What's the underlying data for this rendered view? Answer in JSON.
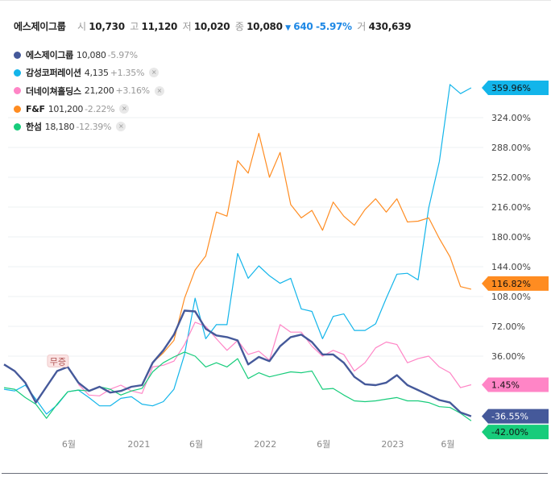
{
  "header": {
    "name": "에스제이그룹",
    "open_label": "시",
    "open": "10,730",
    "high_label": "고",
    "high": "11,120",
    "low_label": "저",
    "low": "10,020",
    "close_label": "종",
    "close": "10,080",
    "change_arrow": "▼",
    "change": "640",
    "change_pct": "-5.97%",
    "volume_label": "거",
    "volume": "430,639"
  },
  "legend": [
    {
      "name": "에스제이그룹",
      "price": "10,080",
      "change": "-5.97%",
      "color": "#45599a",
      "removable": false
    },
    {
      "name": "감성코퍼레이션",
      "price": "4,135",
      "change": "+1.35%",
      "color": "#13b5ea",
      "removable": true
    },
    {
      "name": "더네이쳐홀딩스",
      "price": "21,200",
      "change": "+3.16%",
      "color": "#ff85c6",
      "removable": true
    },
    {
      "name": "F&F",
      "price": "101,200",
      "change": "-2.22%",
      "color": "#ff8c21",
      "removable": true
    },
    {
      "name": "한섬",
      "price": "18,180",
      "change": "-12.39%",
      "color": "#17cc7b",
      "removable": true
    }
  ],
  "remove_icon": "×",
  "marker": {
    "label": "무증",
    "index": 5
  },
  "chart_data": {
    "type": "line",
    "ylim": [
      -60,
      380
    ],
    "yticks": [
      36,
      72,
      108,
      144,
      180,
      216,
      252,
      288,
      324
    ],
    "ytick_labels": [
      "36.00%",
      "72.00%",
      "108.00%",
      "144.00%",
      "180.00%",
      "216.00%",
      "252.00%",
      "288.00%",
      "324.00%"
    ],
    "xticks": [
      {
        "label": "6월",
        "index": 6.1
      },
      {
        "label": "2021",
        "index": 12.7
      },
      {
        "label": "6월",
        "index": 18.1
      },
      {
        "label": "2022",
        "index": 24.6
      },
      {
        "label": "6월",
        "index": 30.1
      },
      {
        "label": "2023",
        "index": 36.6
      },
      {
        "label": "6월",
        "index": 41.8
      }
    ],
    "series": [
      {
        "name": "감성코퍼레이션",
        "color": "#13b5ea",
        "width": 1.2,
        "start": 0,
        "end_label": "359.96%",
        "values": [
          -4,
          -6,
          1,
          -16,
          -34,
          -23,
          -7,
          -5,
          -14,
          -24,
          -24,
          -15,
          -13,
          -22,
          -24,
          -19,
          -4,
          38,
          106,
          57,
          74,
          74,
          160,
          130,
          145,
          133,
          124,
          130,
          93,
          90,
          57,
          84,
          87,
          67,
          67,
          75,
          106,
          135,
          136,
          128,
          215,
          271,
          364,
          353,
          359.96
        ]
      },
      {
        "name": "F&F",
        "color": "#ff8c21",
        "width": 1.2,
        "start": 14,
        "end_label": "116.82%",
        "values": [
          28,
          40,
          55,
          106,
          140,
          157,
          210,
          205,
          272,
          257,
          305,
          252,
          282,
          219,
          203,
          212,
          188,
          222,
          205,
          194,
          213,
          226,
          210,
          226,
          198,
          199,
          203,
          178,
          156,
          120,
          116.82
        ]
      },
      {
        "name": "더네이쳐홀딩스",
        "color": "#ff85c6",
        "width": 1.2,
        "start": 7,
        "end_label": "1.45%",
        "values": [
          2,
          -11,
          -12,
          -4,
          1,
          -6,
          -9,
          23,
          25,
          30,
          50,
          77,
          72,
          57,
          43,
          55,
          38,
          42,
          31,
          74,
          65,
          65,
          48,
          36,
          43,
          38,
          18,
          28,
          46,
          53,
          50,
          28,
          33,
          36,
          23,
          16,
          -2,
          1.45
        ]
      },
      {
        "name": "한섬",
        "color": "#17cc7b",
        "width": 1.2,
        "start": 0,
        "end_label": "-42.00%",
        "values": [
          -2,
          -4,
          -14,
          -22,
          -39,
          -22,
          -7,
          -5,
          -6,
          -1,
          -4,
          -11,
          -6,
          -3,
          17,
          28,
          35,
          41,
          36,
          23,
          28,
          23,
          33,
          9,
          16,
          11,
          14,
          17,
          16,
          18,
          -4,
          -3,
          -11,
          -18,
          -19,
          -18,
          -16,
          -14,
          -18,
          -18,
          -20,
          -25,
          -26,
          -33,
          -42
        ]
      },
      {
        "name": "에스제이그룹",
        "color": "#45599a",
        "width": 2.4,
        "start": 0,
        "end_label": "-36.55%",
        "values": [
          26,
          18,
          4,
          -20,
          -1,
          18,
          23,
          4,
          -6,
          -1,
          -8,
          -6,
          -1,
          1,
          28,
          43,
          62,
          91,
          90,
          69,
          61,
          59,
          55,
          26,
          35,
          30,
          48,
          59,
          62,
          53,
          38,
          38,
          28,
          11,
          2,
          1,
          4,
          13,
          1,
          -5,
          -11,
          -17,
          -20,
          -32,
          -36.55
        ]
      }
    ]
  }
}
